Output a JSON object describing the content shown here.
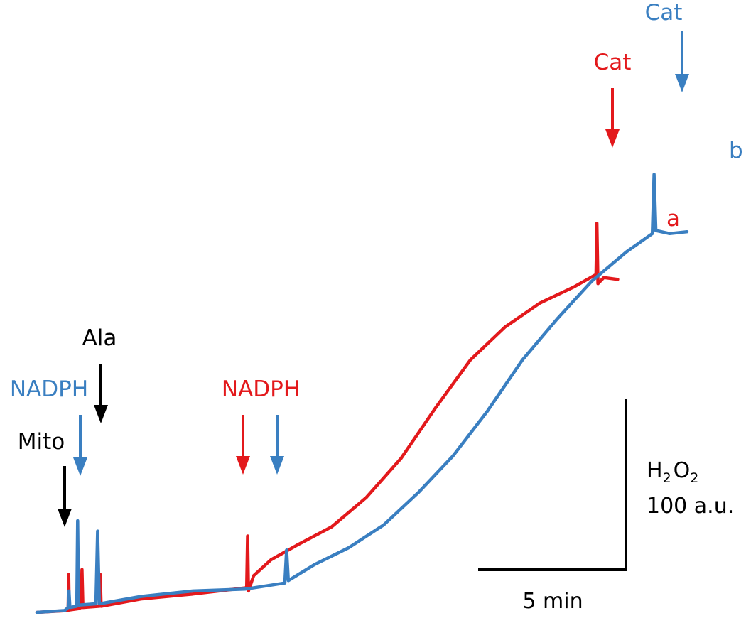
{
  "colors": {
    "trace_a": "#e3191c",
    "trace_b": "#3a7fc1",
    "black": "#000000"
  },
  "chart_data": {
    "type": "line",
    "title": "",
    "xlabel": "",
    "ylabel": "",
    "grid": false,
    "axes": false,
    "x_unit": "min",
    "y_unit": "H2O2 a.u.",
    "series": [
      {
        "name": "a",
        "color_key": "trace_a",
        "points": [
          [
            0,
            0
          ],
          [
            1.8,
            3
          ],
          [
            1.83,
            62
          ],
          [
            1.86,
            4
          ],
          [
            2.4,
            6
          ],
          [
            2.55,
            8
          ],
          [
            2.6,
            70
          ],
          [
            2.65,
            8
          ],
          [
            3.6,
            10
          ],
          [
            3.65,
            62
          ],
          [
            3.7,
            10
          ],
          [
            6,
            22
          ],
          [
            9,
            30
          ],
          [
            12,
            40
          ],
          [
            12.1,
            40
          ],
          [
            12.15,
            125
          ],
          [
            12.2,
            35
          ],
          [
            12.5,
            60
          ],
          [
            13.5,
            86
          ],
          [
            15,
            110
          ],
          [
            17,
            140
          ],
          [
            19,
            188
          ],
          [
            21,
            252
          ],
          [
            23,
            335
          ],
          [
            25,
            413
          ],
          [
            27,
            467
          ],
          [
            29,
            506
          ],
          [
            31,
            533
          ],
          [
            32.25,
            553
          ],
          [
            32.3,
            637
          ],
          [
            32.36,
            538
          ],
          [
            32.7,
            548
          ],
          [
            33.5,
            545
          ]
        ]
      },
      {
        "name": "b",
        "color_key": "trace_b",
        "points": [
          [
            0,
            0
          ],
          [
            1.6,
            3
          ],
          [
            1.8,
            8
          ],
          [
            1.85,
            35
          ],
          [
            1.9,
            8
          ],
          [
            2.3,
            10
          ],
          [
            2.35,
            150
          ],
          [
            2.4,
            12
          ],
          [
            3.4,
            14
          ],
          [
            3.5,
            133
          ],
          [
            3.6,
            14
          ],
          [
            6,
            26
          ],
          [
            9,
            35
          ],
          [
            12,
            38
          ],
          [
            14.3,
            48
          ],
          [
            14.4,
            102
          ],
          [
            14.5,
            52
          ],
          [
            16,
            78
          ],
          [
            18,
            106
          ],
          [
            20,
            143
          ],
          [
            22,
            196
          ],
          [
            24,
            256
          ],
          [
            26,
            330
          ],
          [
            28,
            413
          ],
          [
            30,
            480
          ],
          [
            32,
            542
          ],
          [
            34,
            590
          ],
          [
            35.5,
            620
          ],
          [
            35.6,
            717
          ],
          [
            35.7,
            625
          ],
          [
            36.5,
            620
          ],
          [
            37.5,
            623
          ]
        ]
      }
    ],
    "x_range": [
      0,
      38
    ],
    "y_range": [
      0,
      760
    ],
    "annotations": [
      {
        "text": "Mito",
        "x": 1.78,
        "color_key": "black",
        "target": "a"
      },
      {
        "text": "NADPH",
        "x": 2.5,
        "color_key": "trace_b",
        "target": "b"
      },
      {
        "text": "Ala",
        "x": 3.45,
        "color_key": "black",
        "target": "b"
      },
      {
        "text": "NADPH",
        "x": 12.1,
        "color_key": "trace_a",
        "target": "a"
      },
      {
        "text": "",
        "x": 14.35,
        "color_key": "trace_b",
        "target": "b"
      },
      {
        "text": "Cat",
        "x": 32.25,
        "color_key": "trace_a",
        "target": "a"
      },
      {
        "text": "Cat",
        "x": 35.55,
        "color_key": "trace_b",
        "target": "b"
      }
    ],
    "trace_labels": [
      {
        "text": "a",
        "series": "a"
      },
      {
        "text": "b",
        "series": "b"
      }
    ],
    "scale_bar": {
      "x_text": "5 min",
      "x_value": 5,
      "y_text_line1_parts": [
        "H",
        "2",
        "O",
        "2"
      ],
      "y_text_line2": "100 a.u.",
      "y_value": 100
    }
  }
}
